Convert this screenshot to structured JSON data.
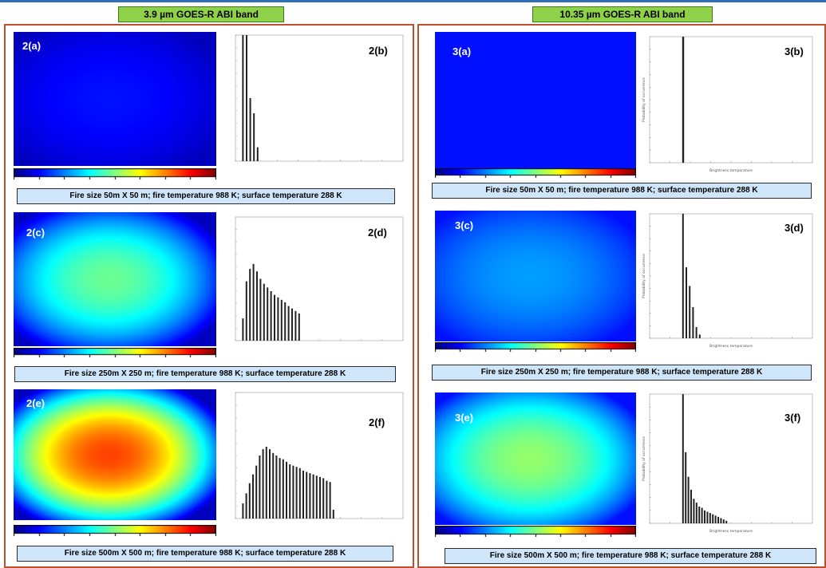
{
  "bands": [
    {
      "title": "3.9 µm GOES-R ABI band",
      "rows": [
        {
          "heat_label": "2(a)",
          "hist_label": "2(b)",
          "caption": "Fire size 50m X 50 m; fire temperature 988 K; surface temperature 288 K",
          "peak_intensity": 0.08,
          "hist_values": [
            1.0,
            1.0,
            0.5,
            0.38,
            0.11
          ]
        },
        {
          "heat_label": "2(c)",
          "hist_label": "2(d)",
          "caption": "Fire size 250m X 250 m; fire temperature 988 K; surface temperature 288 K",
          "peak_intensity": 0.42,
          "hist_values": [
            0.18,
            0.48,
            0.58,
            0.62,
            0.56,
            0.5,
            0.46,
            0.43,
            0.4,
            0.37,
            0.35,
            0.33,
            0.31,
            0.28,
            0.26,
            0.24,
            0.22
          ]
        },
        {
          "heat_label": "2(e)",
          "hist_label": "2(f)",
          "caption": "Fire size 500m X 500 m; fire temperature 988 K; surface temperature 288 K",
          "peak_intensity": 0.75,
          "hist_values": [
            0.12,
            0.2,
            0.28,
            0.35,
            0.42,
            0.5,
            0.55,
            0.57,
            0.55,
            0.52,
            0.5,
            0.48,
            0.47,
            0.45,
            0.43,
            0.42,
            0.41,
            0.4,
            0.38,
            0.37,
            0.36,
            0.35,
            0.34,
            0.33,
            0.32,
            0.3,
            0.29,
            0.07
          ]
        }
      ]
    },
    {
      "title": "10.35 µm GOES-R ABI band",
      "rows": [
        {
          "heat_label": "3(a)",
          "hist_label": "3(b)",
          "caption": "Fire size 50m X 50 m; fire temperature 988 K; surface temperature 288 K",
          "peak_intensity": 0.0,
          "hist_values": [
            1.0
          ],
          "hist_xlabel": "Brightness temperature",
          "hist_ylabel": "Probability of occurrence"
        },
        {
          "heat_label": "3(c)",
          "hist_label": "3(d)",
          "caption": "Fire size 250m X 250 m; fire temperature 988 K; surface temperature 288 K",
          "peak_intensity": 0.14,
          "hist_values": [
            1.0,
            0.57,
            0.42,
            0.25,
            0.09,
            0.03
          ],
          "hist_xlabel": "Brightness temperature",
          "hist_ylabel": "Probability of occurrence"
        },
        {
          "heat_label": "3(e)",
          "hist_label": "3(f)",
          "caption": "Fire size 500m X 500 m; fire temperature 988 K; surface temperature 288 K",
          "peak_intensity": 0.38,
          "hist_values": [
            1.0,
            0.55,
            0.36,
            0.26,
            0.19,
            0.16,
            0.13,
            0.12,
            0.1,
            0.09,
            0.08,
            0.07,
            0.06,
            0.05,
            0.04,
            0.03,
            0.02
          ],
          "hist_xlabel": "Brightness temperature",
          "hist_ylabel": "Probability of occurrence"
        }
      ]
    }
  ]
}
